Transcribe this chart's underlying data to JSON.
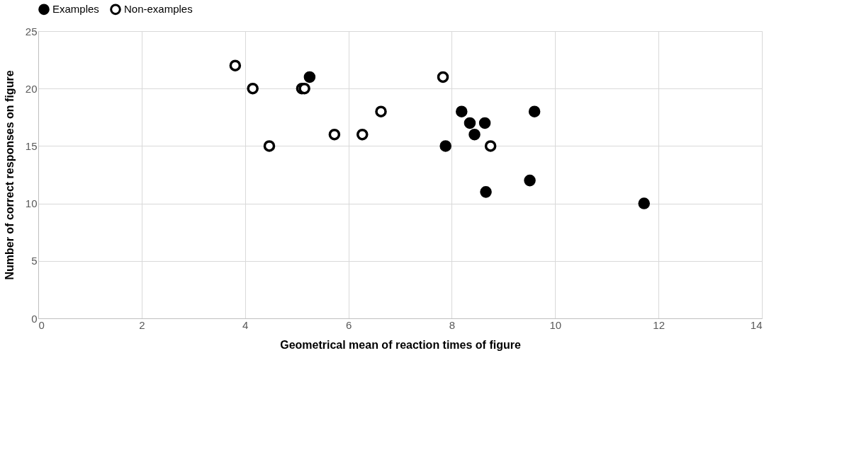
{
  "chart_data": {
    "type": "scatter",
    "xlabel": "Geometrical mean of reaction times of figure",
    "ylabel": "Number of correct responses on figure",
    "xlim": [
      0,
      14
    ],
    "xticks": [
      0,
      2,
      4,
      6,
      8,
      10,
      12,
      14
    ],
    "ylim": [
      0,
      25
    ],
    "yticks": [
      0,
      5,
      10,
      15,
      20,
      25
    ],
    "grid": true,
    "legend": "top",
    "marker": "circle",
    "series": [
      {
        "name": "Examples",
        "color": "#000000",
        "x": [
          5.25,
          8.19,
          8.35,
          8.64,
          8.44,
          7.88,
          9.6,
          9.51,
          8.66,
          11.72
        ],
        "values": [
          21,
          18,
          17,
          17,
          16,
          15,
          18,
          12,
          11,
          10
        ]
      },
      {
        "name": "Non-examples",
        "color": "#ffffff",
        "x": [
          3.81,
          4.15,
          4.47,
          5.1,
          5.15,
          5.73,
          6.27,
          6.63,
          7.83,
          8.75
        ],
        "values": [
          22,
          20,
          15,
          20,
          20,
          16,
          16,
          18,
          21,
          15
        ]
      }
    ]
  }
}
